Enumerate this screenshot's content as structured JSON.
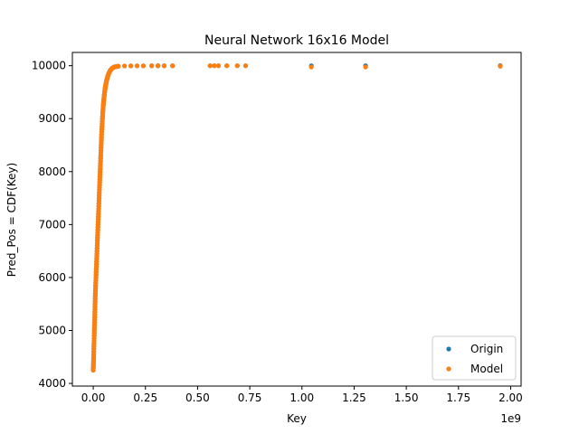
{
  "chart_data": {
    "type": "scatter",
    "title": "Neural Network 16x16 Model",
    "xlabel": "Key",
    "ylabel": "Pred_Pos = CDF(Key)",
    "x_offset_label": "1e9",
    "xlim": [
      -0.1,
      2.05
    ],
    "ylim": [
      3950,
      10250
    ],
    "x_ticks": [
      0.0,
      0.25,
      0.5,
      0.75,
      1.0,
      1.25,
      1.5,
      1.75,
      2.0
    ],
    "x_tick_labels": [
      "0.00",
      "0.25",
      "0.50",
      "0.75",
      "1.00",
      "1.25",
      "1.50",
      "1.75",
      "2.00"
    ],
    "y_ticks": [
      4000,
      5000,
      6000,
      7000,
      8000,
      9000,
      10000
    ],
    "y_tick_labels": [
      "4000",
      "5000",
      "6000",
      "7000",
      "8000",
      "9000",
      "10000"
    ],
    "legend_position": "bottom-right",
    "series": [
      {
        "name": "Origin",
        "color": "#1f77b4",
        "points": [
          [
            0.0,
            4250
          ],
          [
            0.002,
            4500
          ],
          [
            0.004,
            4800
          ],
          [
            0.006,
            5100
          ],
          [
            0.008,
            5400
          ],
          [
            0.01,
            5700
          ],
          [
            0.013,
            6000
          ],
          [
            0.016,
            6300
          ],
          [
            0.019,
            6600
          ],
          [
            0.022,
            6900
          ],
          [
            0.025,
            7200
          ],
          [
            0.028,
            7500
          ],
          [
            0.031,
            7800
          ],
          [
            0.034,
            8100
          ],
          [
            0.037,
            8400
          ],
          [
            0.04,
            8700
          ],
          [
            0.044,
            9000
          ],
          [
            0.048,
            9250
          ],
          [
            0.053,
            9450
          ],
          [
            0.058,
            9600
          ],
          [
            0.064,
            9720
          ],
          [
            0.071,
            9820
          ],
          [
            0.08,
            9900
          ],
          [
            0.09,
            9950
          ],
          [
            0.1,
            9975
          ],
          [
            0.12,
            9990
          ],
          [
            0.15,
            9995
          ],
          [
            0.18,
            9996
          ],
          [
            0.21,
            9997
          ],
          [
            0.24,
            9997
          ],
          [
            0.28,
            9998
          ],
          [
            0.31,
            9998
          ],
          [
            0.34,
            9998
          ],
          [
            0.38,
            9998
          ],
          [
            0.56,
            9999
          ],
          [
            0.58,
            9999
          ],
          [
            0.6,
            9999
          ],
          [
            0.64,
            9999
          ],
          [
            0.69,
            9999
          ],
          [
            0.73,
            9999
          ],
          [
            1.045,
            9999
          ],
          [
            1.305,
            9999
          ],
          [
            1.95,
            10000
          ]
        ]
      },
      {
        "name": "Model",
        "color": "#ff7f0e",
        "points": [
          [
            0.0,
            4250
          ],
          [
            0.002,
            4500
          ],
          [
            0.004,
            4800
          ],
          [
            0.006,
            5100
          ],
          [
            0.008,
            5400
          ],
          [
            0.01,
            5700
          ],
          [
            0.013,
            6000
          ],
          [
            0.016,
            6300
          ],
          [
            0.019,
            6600
          ],
          [
            0.022,
            6900
          ],
          [
            0.025,
            7200
          ],
          [
            0.028,
            7500
          ],
          [
            0.031,
            7800
          ],
          [
            0.034,
            8100
          ],
          [
            0.037,
            8400
          ],
          [
            0.04,
            8700
          ],
          [
            0.044,
            9000
          ],
          [
            0.048,
            9250
          ],
          [
            0.053,
            9450
          ],
          [
            0.058,
            9600
          ],
          [
            0.064,
            9720
          ],
          [
            0.071,
            9820
          ],
          [
            0.08,
            9900
          ],
          [
            0.09,
            9950
          ],
          [
            0.1,
            9975
          ],
          [
            0.12,
            9990
          ],
          [
            0.15,
            9995
          ],
          [
            0.18,
            9996
          ],
          [
            0.21,
            9997
          ],
          [
            0.24,
            9997
          ],
          [
            0.28,
            9998
          ],
          [
            0.31,
            9998
          ],
          [
            0.34,
            9998
          ],
          [
            0.38,
            9998
          ],
          [
            0.56,
            9999
          ],
          [
            0.58,
            9999
          ],
          [
            0.6,
            9999
          ],
          [
            0.64,
            9999
          ],
          [
            0.69,
            9999
          ],
          [
            0.73,
            9999
          ],
          [
            1.045,
            9975
          ],
          [
            1.305,
            9975
          ],
          [
            1.95,
            9990
          ]
        ]
      }
    ]
  }
}
